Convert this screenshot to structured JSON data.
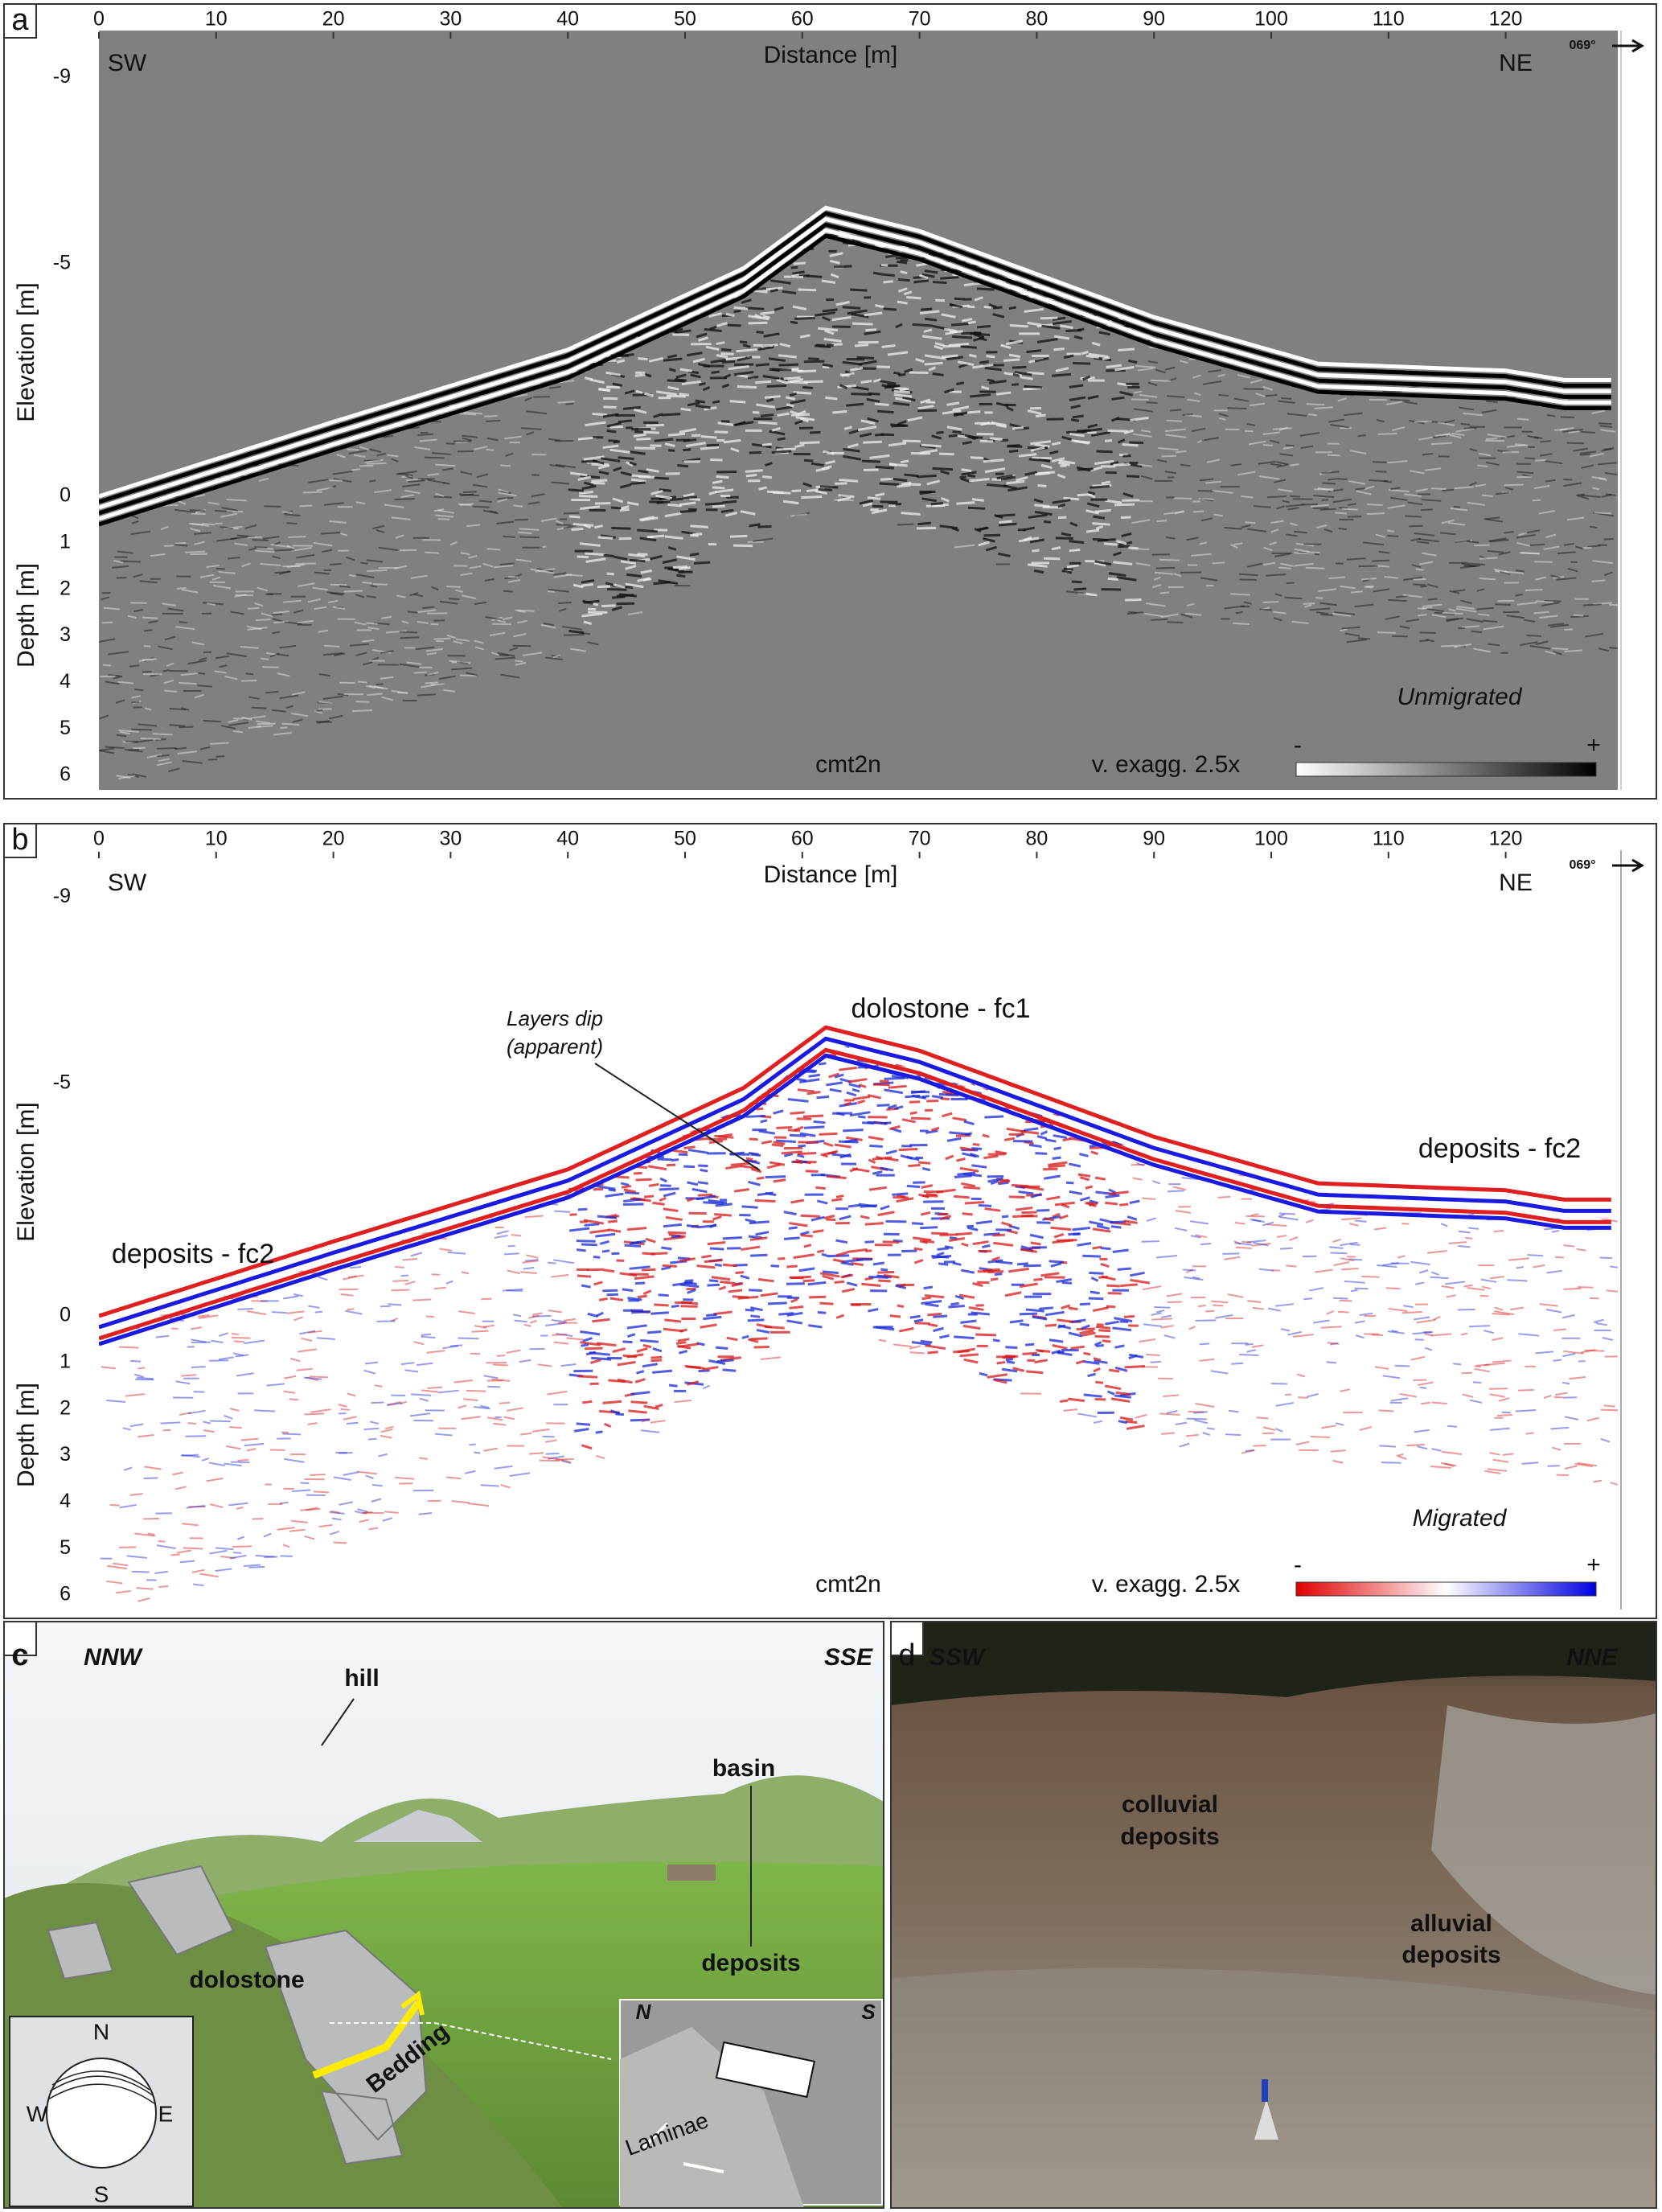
{
  "panels": [
    {
      "label": "a",
      "x_axis_title": "Distance [m]",
      "x_ticks": [
        0,
        10,
        20,
        30,
        40,
        50,
        60,
        70,
        80,
        90,
        100,
        110,
        120
      ],
      "elevation_title": "Elevation [m]",
      "elevation_ticks": [
        -9,
        -5,
        0
      ],
      "depth_title": "Depth [m]",
      "depth_ticks": [
        1,
        2,
        3,
        4,
        5,
        6
      ],
      "left_direction": "SW",
      "right_direction": "NE",
      "azimuth": "069°",
      "processing": "Unmigrated",
      "profile": "cmt2n",
      "exaggeration": "v. exagg. 2.5x",
      "scale_min": "-",
      "scale_max": "+",
      "annotations": []
    },
    {
      "label": "b",
      "x_axis_title": "Distance [m]",
      "x_ticks": [
        0,
        10,
        20,
        30,
        40,
        50,
        60,
        70,
        80,
        90,
        100,
        110,
        120
      ],
      "elevation_title": "Elevation [m]",
      "elevation_ticks": [
        -9,
        -5,
        0
      ],
      "depth_title": "Depth [m]",
      "depth_ticks": [
        1,
        2,
        3,
        4,
        5,
        6
      ],
      "left_direction": "SW",
      "right_direction": "NE",
      "azimuth": "069°",
      "processing": "Migrated",
      "profile": "cmt2n",
      "exaggeration": "v. exagg. 2.5x",
      "scale_min": "-",
      "scale_max": "+",
      "annotations": [
        "Layers dip",
        "(apparent)",
        "dolostone - fc1",
        "deposits - fc2",
        "deposits - fc2"
      ]
    }
  ],
  "photo_c": {
    "label": "c",
    "left_direction": "NNW",
    "right_direction": "SSE",
    "hill": "hill",
    "basin": "basin",
    "deposits": "deposits",
    "dolostone": "dolostone",
    "bedding": "Bedding",
    "stereonet": [
      "N",
      "E",
      "S",
      "W"
    ],
    "inset": [
      "N",
      "S",
      "Laminae"
    ]
  },
  "photo_d": {
    "label": "d",
    "left_direction": "SSW",
    "right_direction": "NNE",
    "colluvial": [
      "colluvial",
      "deposits"
    ],
    "alluvial": [
      "alluvial",
      "deposits"
    ]
  }
}
